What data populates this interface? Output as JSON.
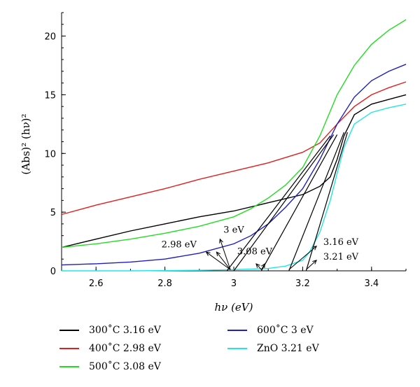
{
  "chart_data": {
    "type": "line",
    "title": "",
    "xlabel": "hν (eV)",
    "ylabel": "(Abs)² (hν)²",
    "xlim": [
      2.5,
      3.5
    ],
    "ylim": [
      0,
      22
    ],
    "xticks": [
      2.6,
      2.8,
      3,
      3.2,
      3.4
    ],
    "xtick_labels": [
      "2.6",
      "2.8",
      "3",
      "3.2",
      "3.4"
    ],
    "yticks": [
      0,
      5,
      10,
      15,
      20
    ],
    "ytick_labels": [
      "0",
      "5",
      "10",
      "15",
      "20"
    ],
    "grid": false,
    "legend_position": "bottom",
    "series": [
      {
        "name": "300˚C 3.16 eV",
        "color": "#000000",
        "x": [
          2.5,
          2.6,
          2.7,
          2.8,
          2.9,
          3.0,
          3.1,
          3.2,
          3.25,
          3.28,
          3.3,
          3.32,
          3.35,
          3.4,
          3.45,
          3.5
        ],
        "y": [
          2.0,
          2.7,
          3.4,
          4.0,
          4.6,
          5.1,
          5.8,
          6.5,
          7.2,
          8.0,
          9.5,
          11.5,
          13.3,
          14.2,
          14.6,
          15.0
        ]
      },
      {
        "name": "400˚C 2.98 eV",
        "color": "#e02020",
        "x": [
          2.5,
          2.6,
          2.7,
          2.8,
          2.9,
          3.0,
          3.1,
          3.2,
          3.25,
          3.3,
          3.35,
          3.4,
          3.45,
          3.5
        ],
        "y": [
          4.8,
          5.6,
          6.3,
          7.0,
          7.8,
          8.5,
          9.2,
          10.1,
          10.9,
          12.5,
          14.0,
          15.0,
          15.6,
          16.1
        ]
      },
      {
        "name": "500˚C 3.08 eV",
        "color": "#22dd22",
        "x": [
          2.5,
          2.6,
          2.7,
          2.8,
          2.9,
          3.0,
          3.05,
          3.1,
          3.15,
          3.2,
          3.25,
          3.3,
          3.35,
          3.4,
          3.45,
          3.5
        ],
        "y": [
          2.0,
          2.3,
          2.7,
          3.2,
          3.8,
          4.6,
          5.3,
          6.2,
          7.3,
          8.8,
          11.5,
          15.0,
          17.5,
          19.3,
          20.5,
          21.4
        ]
      },
      {
        "name": "600˚C 3 eV",
        "color": "#1f1fbf",
        "x": [
          2.5,
          2.6,
          2.7,
          2.8,
          2.9,
          3.0,
          3.05,
          3.1,
          3.15,
          3.2,
          3.25,
          3.3,
          3.35,
          3.4,
          3.45,
          3.5
        ],
        "y": [
          0.5,
          0.6,
          0.75,
          1.0,
          1.5,
          2.3,
          3.0,
          4.0,
          5.4,
          7.0,
          9.5,
          12.5,
          14.8,
          16.2,
          17.0,
          17.6
        ]
      },
      {
        "name": "ZnO 3.21 eV",
        "color": "#22e5e5",
        "x": [
          2.5,
          2.7,
          2.9,
          3.0,
          3.1,
          3.15,
          3.2,
          3.22,
          3.25,
          3.28,
          3.3,
          3.32,
          3.35,
          3.4,
          3.45,
          3.5
        ],
        "y": [
          0.0,
          0.0,
          0.05,
          0.1,
          0.2,
          0.4,
          0.9,
          1.6,
          3.3,
          6.0,
          8.3,
          10.5,
          12.5,
          13.5,
          13.9,
          14.2
        ]
      }
    ],
    "tangent_lines": [
      {
        "from": [
          2.98,
          0
        ],
        "to": [
          3.28,
          11.5
        ]
      },
      {
        "from": [
          3.0,
          0
        ],
        "to": [
          3.29,
          11.6
        ]
      },
      {
        "from": [
          3.08,
          0
        ],
        "to": [
          3.3,
          11.6
        ]
      },
      {
        "from": [
          3.16,
          0
        ],
        "to": [
          3.32,
          11.8
        ]
      },
      {
        "from": [
          3.21,
          0
        ],
        "to": [
          3.33,
          11.8
        ]
      }
    ],
    "annotations": [
      {
        "text": "3 eV",
        "x": 2.97,
        "y": 3.25
      },
      {
        "text": "2.98 eV",
        "x": 2.79,
        "y": 2.0
      },
      {
        "text": "3.08 eV",
        "x": 3.01,
        "y": 1.4
      },
      {
        "text": "3.16 eV",
        "x": 3.26,
        "y": 2.2
      },
      {
        "text": "3.21 eV",
        "x": 3.26,
        "y": 0.95
      }
    ],
    "annotation_arrows": [
      {
        "from": [
          2.99,
          0.1
        ],
        "to": [
          2.92,
          1.6
        ]
      },
      {
        "from": [
          2.99,
          0.1
        ],
        "to": [
          2.95,
          1.6
        ]
      },
      {
        "from": [
          2.99,
          0.1
        ],
        "to": [
          2.96,
          2.7
        ]
      },
      {
        "from": [
          3.08,
          0.1
        ],
        "to": [
          3.09,
          0.6
        ]
      },
      {
        "from": [
          3.08,
          0.1
        ],
        "to": [
          3.065,
          0.6
        ]
      },
      {
        "from": [
          3.16,
          0.1
        ],
        "to": [
          3.24,
          2.1
        ]
      },
      {
        "from": [
          3.21,
          0.1
        ],
        "to": [
          3.24,
          0.9
        ]
      }
    ]
  }
}
